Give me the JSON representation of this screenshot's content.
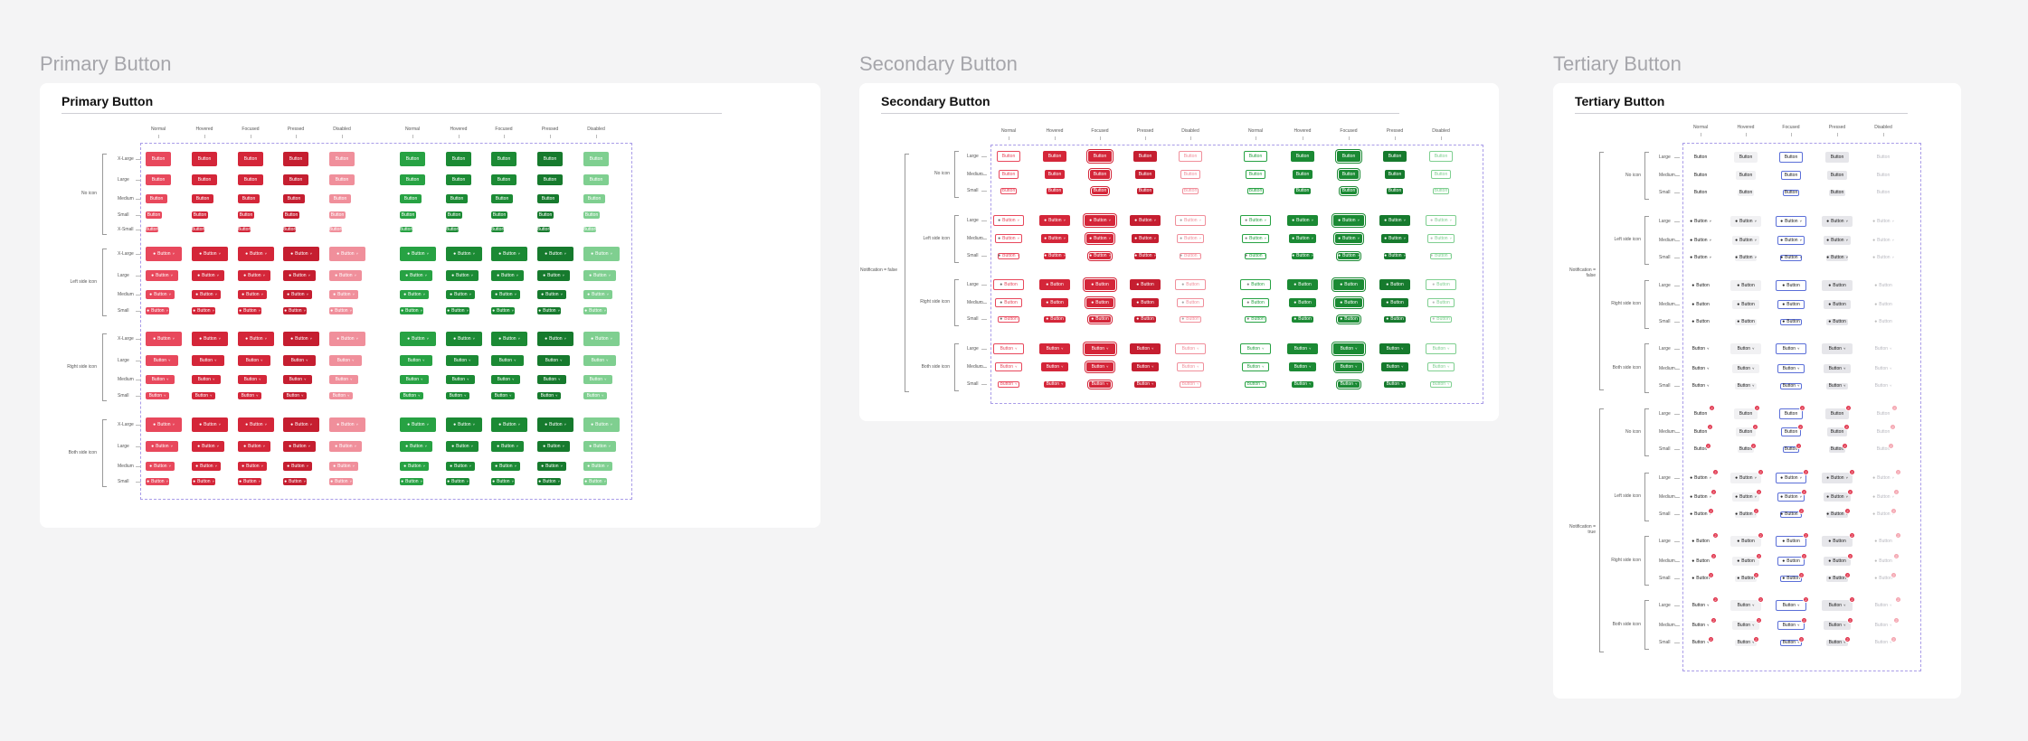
{
  "sections": [
    {
      "title": "Primary Button",
      "card_title": "Primary Button"
    },
    {
      "title": "Secondary Button",
      "card_title": "Secondary Button"
    },
    {
      "title": "Tertiary Button",
      "card_title": "Tertiary Button"
    }
  ],
  "states": [
    "Normal",
    "Hovered",
    "Focused",
    "Pressed",
    "Disabled"
  ],
  "button_label": "Button",
  "badge_label": "2",
  "primary": {
    "groups": [
      {
        "label": "No icon",
        "sizes": [
          "X-Large",
          "Large",
          "Medium",
          "Small",
          "X-Small"
        ]
      },
      {
        "label": "Left side icon",
        "sizes": [
          "X-Large",
          "Large",
          "Medium",
          "Small"
        ]
      },
      {
        "label": "Right side icon",
        "sizes": [
          "X-Large",
          "Large",
          "Medium",
          "Small"
        ]
      },
      {
        "label": "Both side icon",
        "sizes": [
          "X-Large",
          "Large",
          "Medium",
          "Small"
        ]
      }
    ]
  },
  "secondary": {
    "super_label": "Notification = false",
    "groups": [
      {
        "label": "No icon",
        "sizes": [
          "Large",
          "Medium",
          "Small"
        ]
      },
      {
        "label": "Left side icon",
        "sizes": [
          "Large",
          "Medium",
          "Small"
        ]
      },
      {
        "label": "Right side icon",
        "sizes": [
          "Large",
          "Medium",
          "Small"
        ]
      },
      {
        "label": "Both side icon",
        "sizes": [
          "Large",
          "Medium",
          "Small"
        ]
      }
    ]
  },
  "tertiary": {
    "super_labels": [
      "Notification = false",
      "Notification = true"
    ],
    "groups": [
      {
        "label": "No icon",
        "sizes": [
          "Large",
          "Medium",
          "Small"
        ]
      },
      {
        "label": "Left side icon",
        "sizes": [
          "Large",
          "Medium",
          "Small"
        ]
      },
      {
        "label": "Right side icon",
        "sizes": [
          "Large",
          "Medium",
          "Small"
        ]
      },
      {
        "label": "Both side icon",
        "sizes": [
          "Large",
          "Medium",
          "Small"
        ]
      }
    ]
  },
  "colors": {
    "red": [
      "#e8485c",
      "#d42639",
      "#d42639",
      "#c51e30",
      "#f08f9b"
    ],
    "green": [
      "#27a243",
      "#1b8a34",
      "#1b8a34",
      "#167a2d",
      "#7fcf90"
    ],
    "tertiary_focus": "#5b6fd8",
    "badge": "#e0324a"
  },
  "icons": {
    "user": "user-icon",
    "chevron": "chevron-down-icon"
  }
}
